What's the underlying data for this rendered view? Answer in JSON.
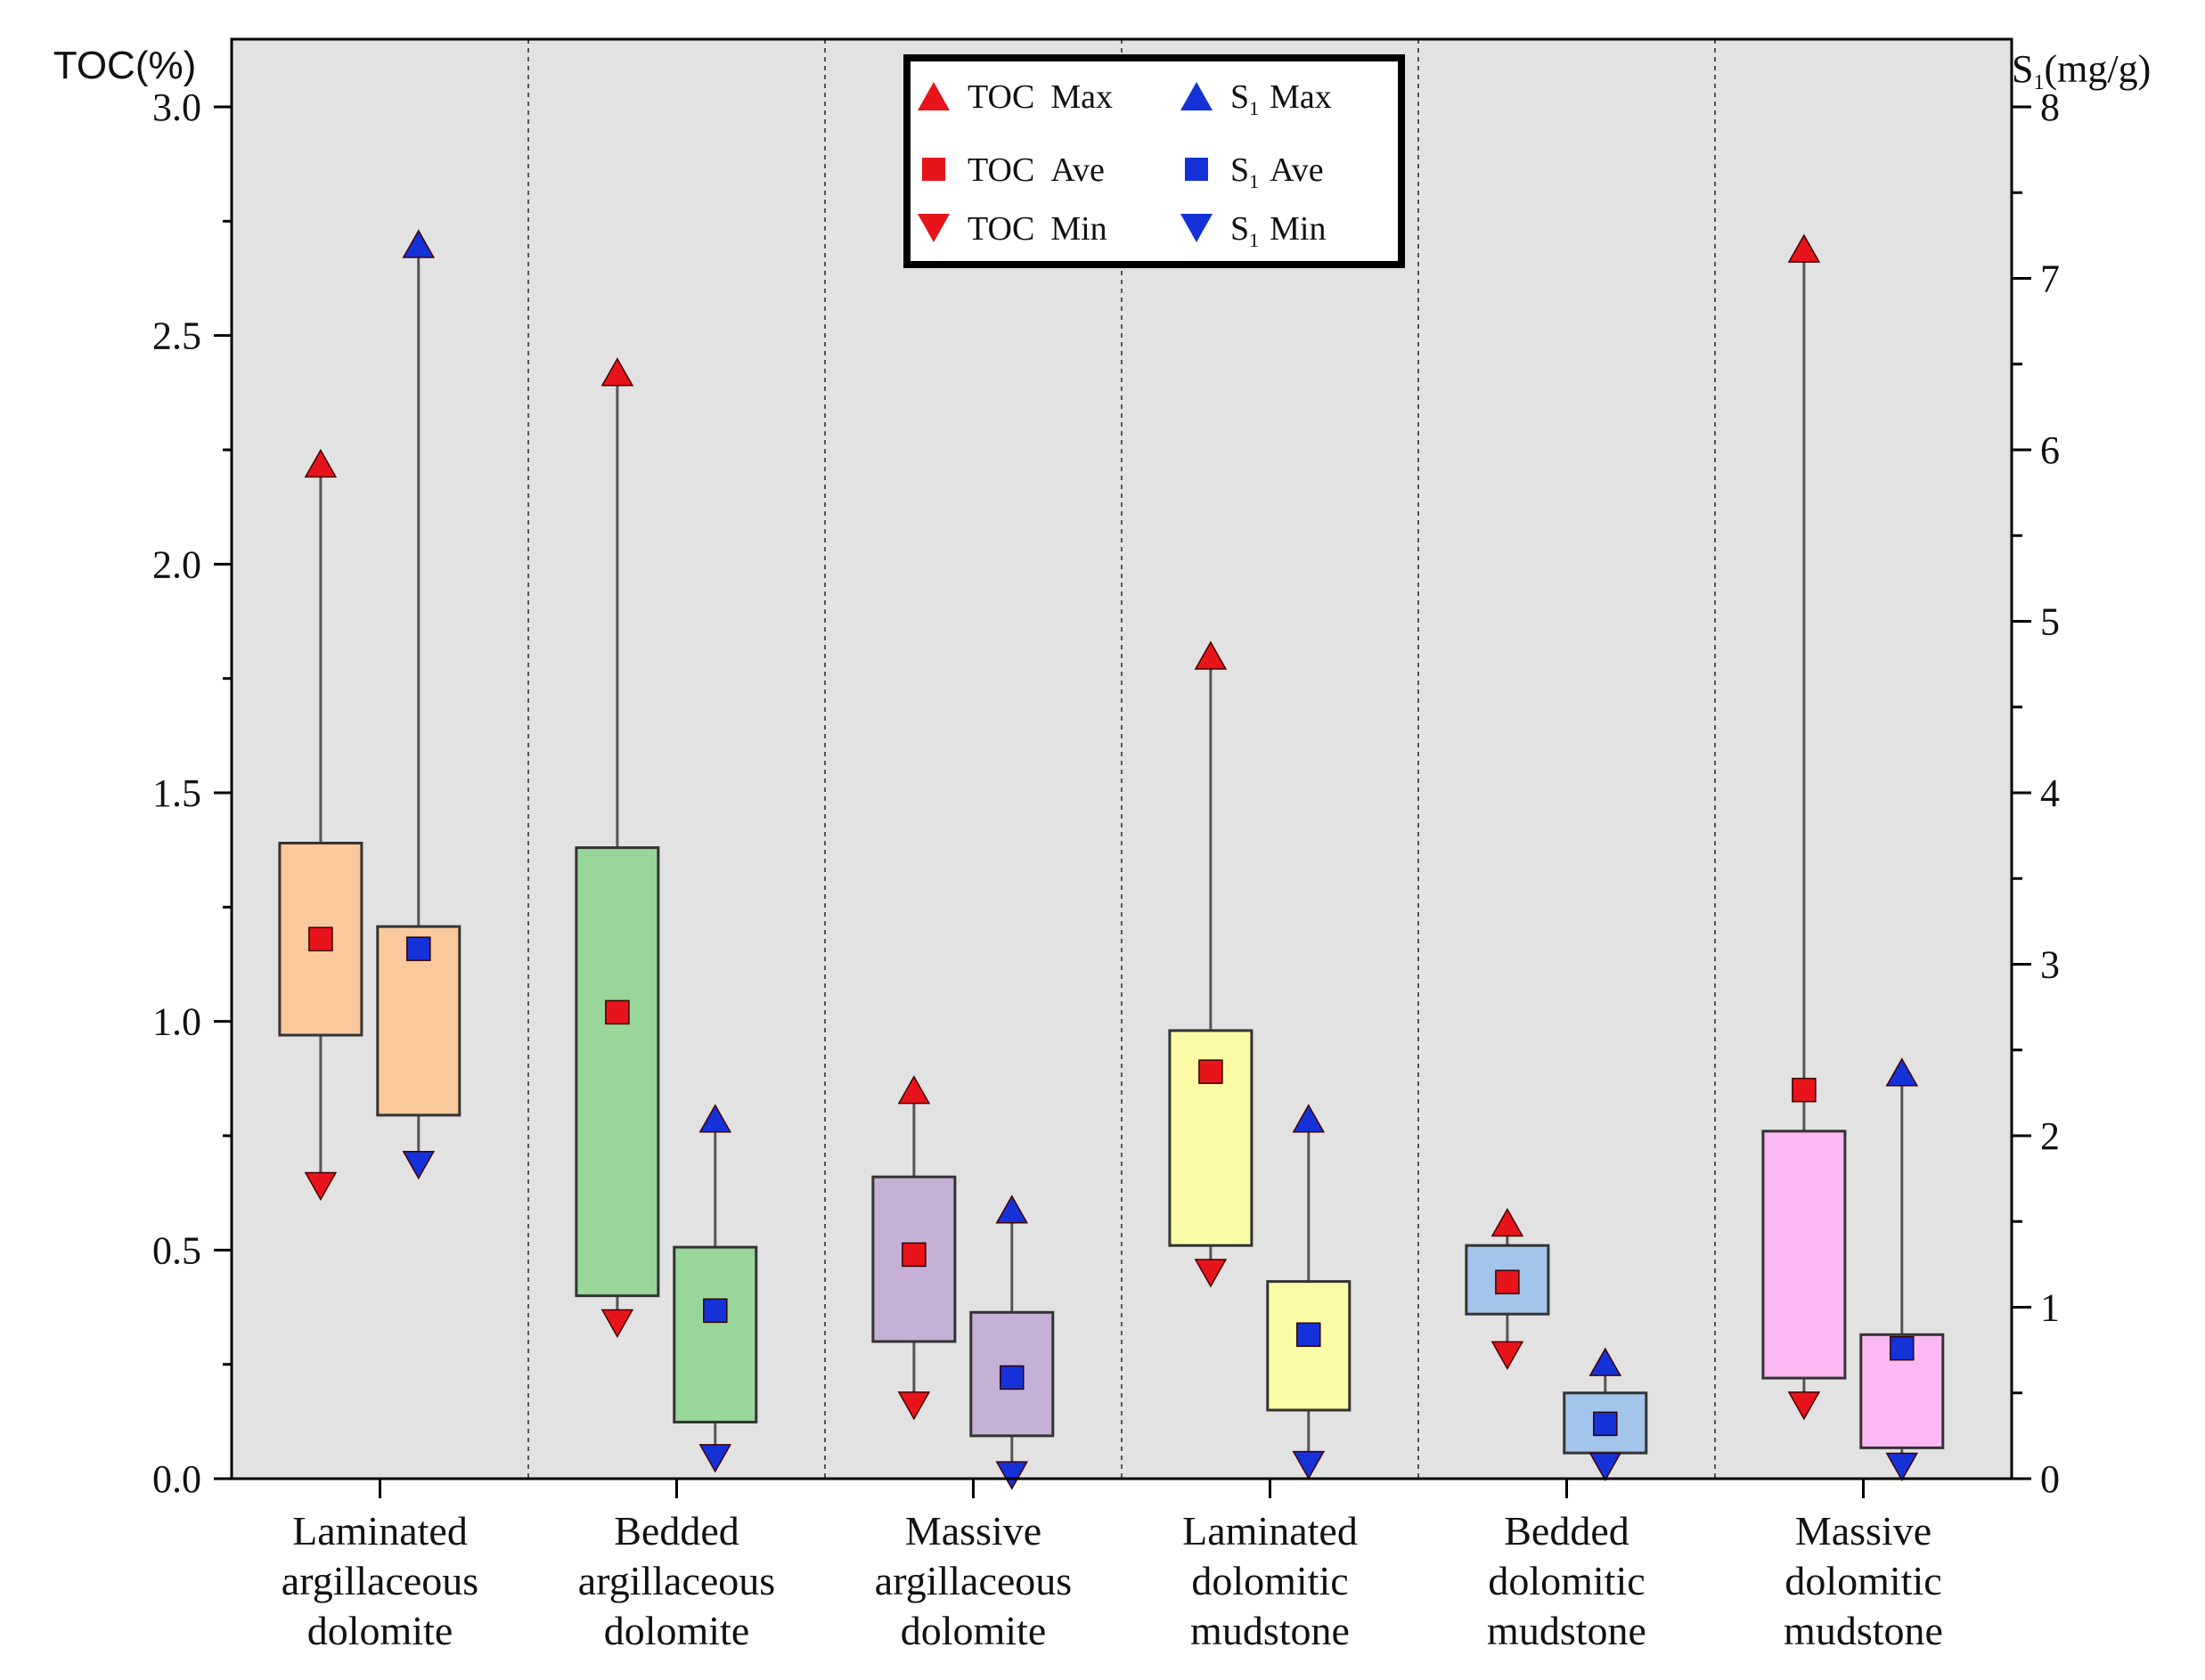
{
  "chart_data": {
    "type": "box-range",
    "title": "",
    "left_axis": {
      "label": "TOC(%)",
      "ylim": [
        0,
        3.0
      ],
      "ticks": [
        "0.0",
        "0.5",
        "1.0",
        "1.5",
        "2.0",
        "2.5",
        "3.0"
      ]
    },
    "right_axis": {
      "label_main": "S",
      "label_sub": "1",
      "label_unit": "(mg/g)",
      "ylim": [
        0,
        8
      ],
      "ticks": [
        "0",
        "1",
        "2",
        "3",
        "4",
        "5",
        "6",
        "7",
        "8"
      ]
    },
    "categories": [
      {
        "lines": [
          "Laminated",
          "argillaceous",
          "dolomite"
        ],
        "color": "#f9c89b",
        "toc": {
          "max": 2.22,
          "box_top": 1.39,
          "box_bottom": 0.97,
          "ave": 1.18,
          "min": 0.64
        },
        "s1": {
          "max": 7.2,
          "box_top": 3.22,
          "box_bottom": 2.12,
          "ave": 3.09,
          "min": 1.83
        }
      },
      {
        "lines": [
          "Bedded",
          "argillaceous",
          "dolomite"
        ],
        "color": "#99d699",
        "toc": {
          "max": 2.42,
          "box_top": 1.38,
          "box_bottom": 0.4,
          "ave": 1.02,
          "min": 0.34
        },
        "s1": {
          "max": 2.1,
          "box_top": 1.35,
          "box_bottom": 0.33,
          "ave": 0.98,
          "min": 0.12
        }
      },
      {
        "lines": [
          "Massive",
          "argillaceous",
          "dolomite"
        ],
        "color": "#c6b0d6",
        "toc": {
          "max": 0.85,
          "box_top": 0.66,
          "box_bottom": 0.3,
          "ave": 0.49,
          "min": 0.16
        },
        "s1": {
          "max": 1.57,
          "box_top": 0.97,
          "box_bottom": 0.25,
          "ave": 0.59,
          "min": 0.02
        }
      },
      {
        "lines": [
          "Laminated",
          "dolomitic",
          "mudstone"
        ],
        "color": "#fbfba6",
        "toc": {
          "max": 1.8,
          "box_top": 0.98,
          "box_bottom": 0.51,
          "ave": 0.89,
          "min": 0.45
        },
        "s1": {
          "max": 2.1,
          "box_top": 1.15,
          "box_bottom": 0.4,
          "ave": 0.84,
          "min": 0.08
        }
      },
      {
        "lines": [
          "Bedded",
          "dolomitic",
          "mudstone"
        ],
        "color": "#a3c4eb",
        "toc": {
          "max": 0.56,
          "box_top": 0.51,
          "box_bottom": 0.36,
          "ave": 0.43,
          "min": 0.27
        },
        "s1": {
          "max": 0.68,
          "box_top": 0.5,
          "box_bottom": 0.15,
          "ave": 0.32,
          "min": 0.07
        }
      },
      {
        "lines": [
          "Massive",
          "dolomitic",
          "mudstone"
        ],
        "color": "#fbb8f3",
        "toc": {
          "max": 2.69,
          "box_top": 0.76,
          "box_bottom": 0.22,
          "ave": 0.85,
          "min": 0.16
        },
        "s1": {
          "max": 2.37,
          "box_top": 0.84,
          "box_bottom": 0.18,
          "ave": 0.76,
          "min": 0.07
        }
      }
    ],
    "legend": {
      "placement": "top-center",
      "entries": [
        {
          "prefix": "TOC",
          "sub": "",
          "label": "Max",
          "shape": "triangle-up",
          "color": "#e8141b"
        },
        {
          "prefix": "S",
          "sub": "1",
          "label": "Max",
          "shape": "triangle-up",
          "color": "#1432d8"
        },
        {
          "prefix": "TOC",
          "sub": "",
          "label": "Ave",
          "shape": "square",
          "color": "#e8141b"
        },
        {
          "prefix": "S",
          "sub": "1",
          "label": "Ave",
          "shape": "square",
          "color": "#1432d8"
        },
        {
          "prefix": "TOC",
          "sub": "",
          "label": "Min",
          "shape": "triangle-down",
          "color": "#e8141b"
        },
        {
          "prefix": "S",
          "sub": "1",
          "label": "Min",
          "shape": "triangle-down",
          "color": "#1432d8"
        }
      ]
    },
    "colors": {
      "toc_marker": "#e8141b",
      "s1_marker": "#1432d8",
      "plot_bg": "#e2e2e2"
    }
  }
}
